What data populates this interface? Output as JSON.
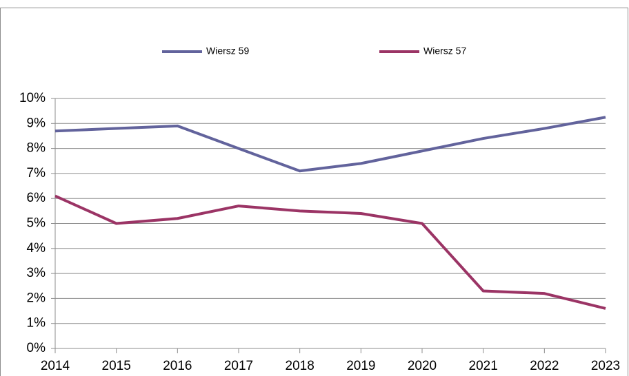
{
  "chart_data": {
    "type": "line",
    "x": [
      2014,
      2015,
      2016,
      2017,
      2018,
      2019,
      2020,
      2021,
      2022,
      2023
    ],
    "xlim": [
      2014,
      2023
    ],
    "xticks": [
      2014,
      2015,
      2016,
      2017,
      2018,
      2019,
      2020,
      2021,
      2022,
      2023
    ],
    "ylim": [
      0,
      10
    ],
    "yticks": [
      {
        "value": 0,
        "label": "0%"
      },
      {
        "value": 1,
        "label": "1%"
      },
      {
        "value": 2,
        "label": "2%"
      },
      {
        "value": 3,
        "label": "3%"
      },
      {
        "value": 4,
        "label": "4%"
      },
      {
        "value": 5,
        "label": "5%"
      },
      {
        "value": 6,
        "label": "6%"
      },
      {
        "value": 7,
        "label": "7%"
      },
      {
        "value": 8,
        "label": "8%"
      },
      {
        "value": 9,
        "label": "9%"
      },
      {
        "value": 10,
        "label": "10%"
      }
    ],
    "grid": true,
    "legend": "top",
    "series": [
      {
        "name": "Wiersz 59",
        "color": "#62639c",
        "values": [
          8.7,
          8.8,
          8.9,
          8.0,
          7.1,
          7.4,
          7.9,
          8.4,
          8.8,
          9.25
        ]
      },
      {
        "name": "Wiersz 57",
        "color": "#9b3465",
        "values": [
          6.1,
          5.0,
          5.2,
          5.7,
          5.5,
          5.4,
          5.0,
          2.3,
          2.2,
          1.6
        ]
      }
    ]
  }
}
